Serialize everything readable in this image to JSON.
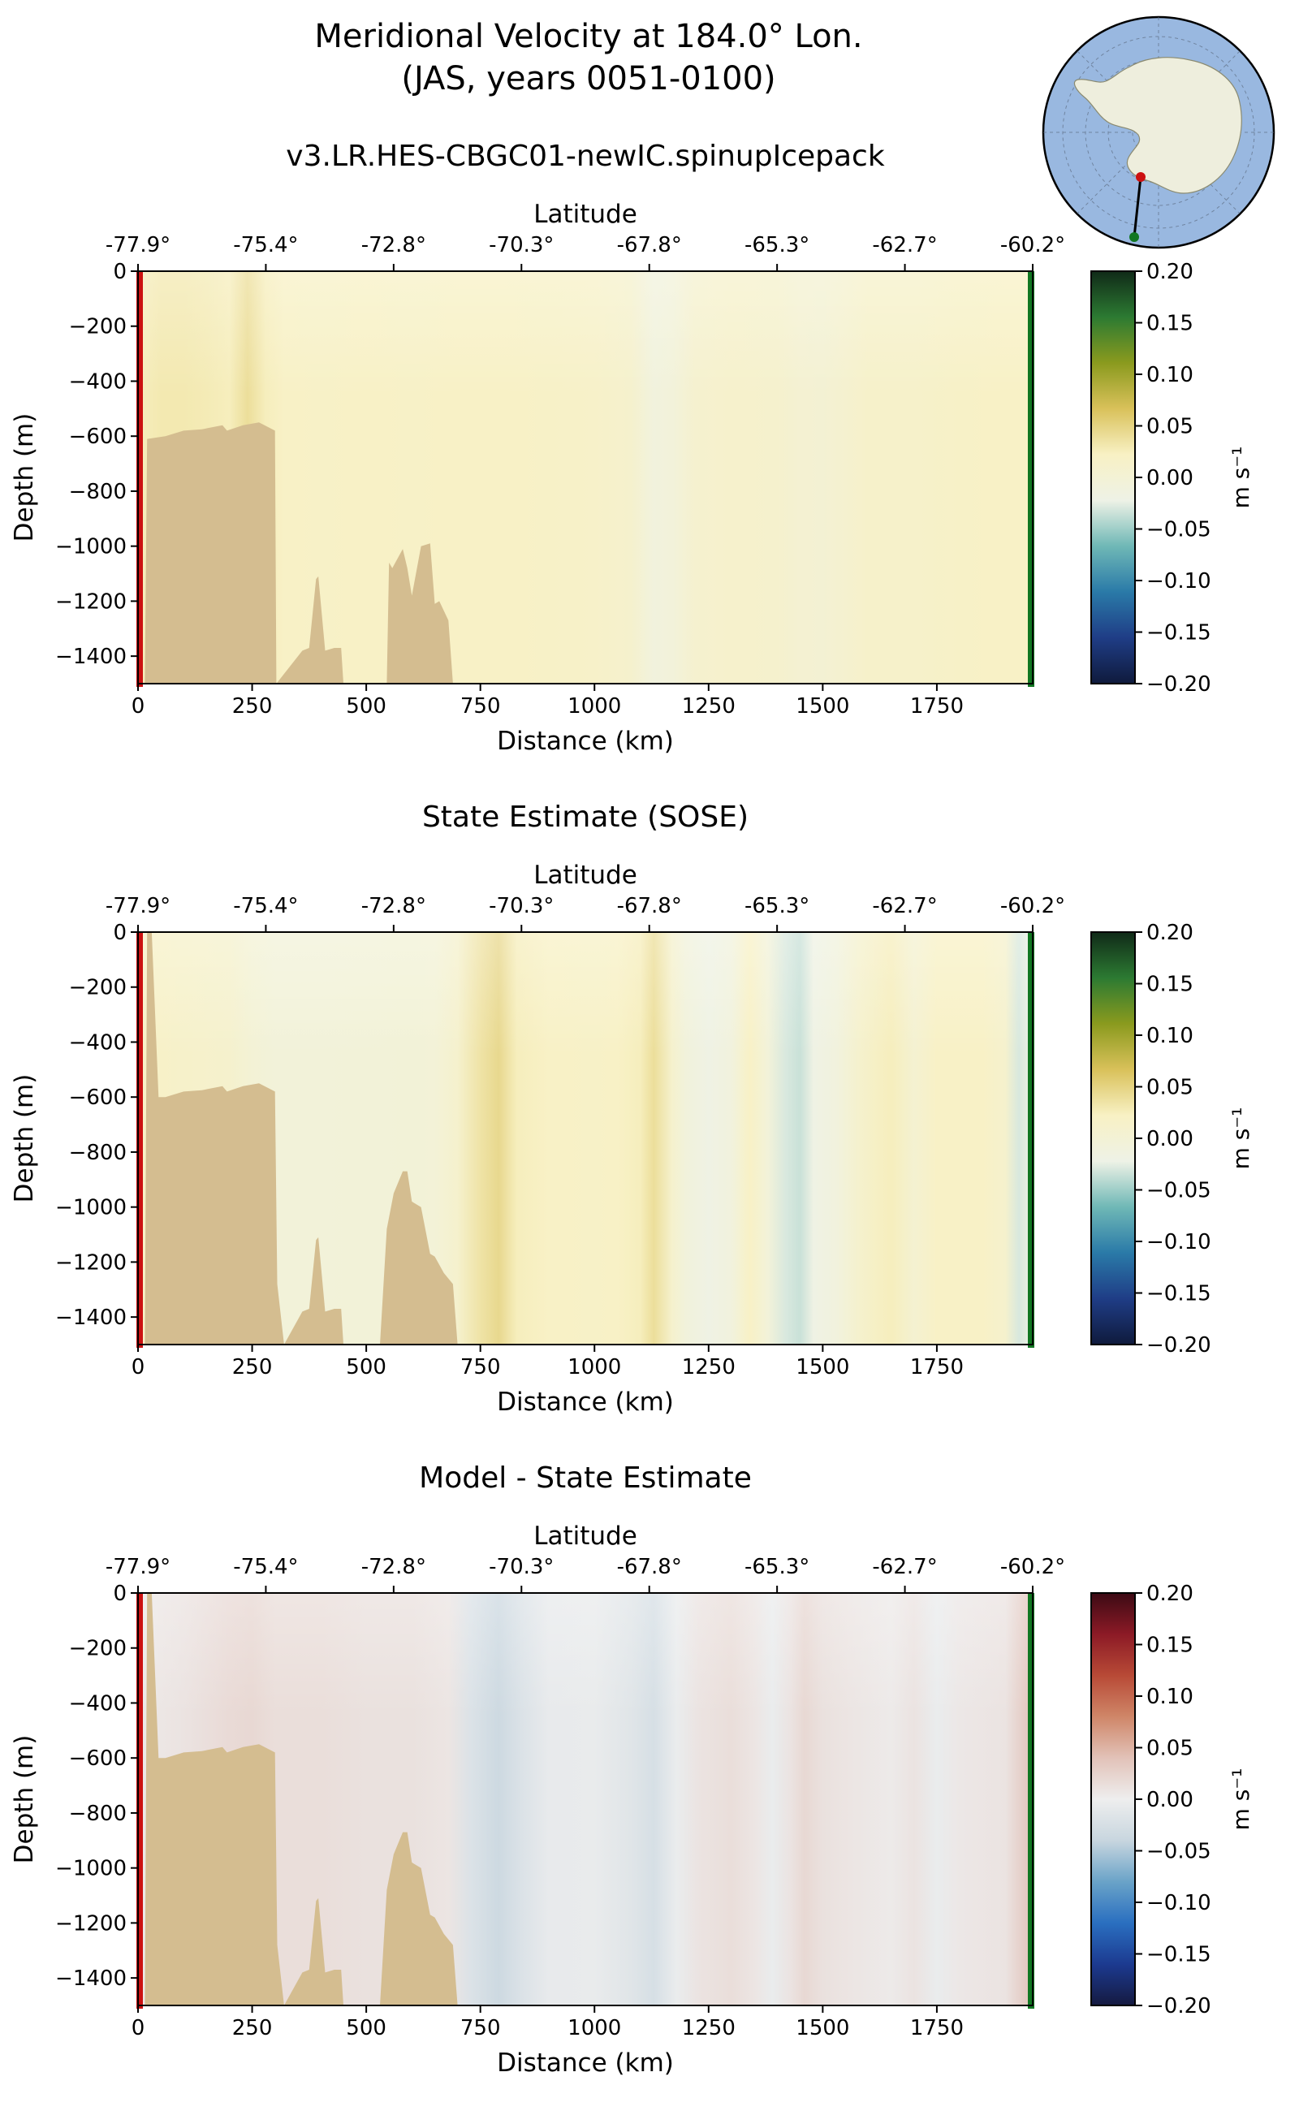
{
  "figure": {
    "title_line1": "Meridional Velocity at 184.0° Lon.",
    "title_line2": "(JAS, years 0051-0100)"
  },
  "colors": {
    "land": "#d4bd90",
    "section_start": "#cc1111",
    "section_end": "#117722",
    "ocean_map": "#99b8e0",
    "antarctica_map": "#eeeedd"
  },
  "chart_data": [
    {
      "type": "heatmap",
      "id": "model",
      "title": "v3.LR.HES-CBGC01-newIC.spinupIcepack",
      "xlabel": "Distance (km)",
      "ylabel": "Depth (m)",
      "top_axis_label": "Latitude",
      "xlim": [
        0,
        1960
      ],
      "ylim": [
        -1500,
        0
      ],
      "xticks": [
        0,
        250,
        500,
        750,
        1000,
        1250,
        1500,
        1750
      ],
      "yticks": [
        0,
        -200,
        -400,
        -600,
        -800,
        -1000,
        -1200,
        -1400
      ],
      "lat_ticks": [
        "-77.9°",
        "-75.4°",
        "-72.8°",
        "-70.3°",
        "-67.8°",
        "-65.3°",
        "-62.7°",
        "-60.2°"
      ],
      "lat_tick_km": [
        0,
        280,
        560,
        840,
        1120,
        1400,
        1680,
        1960
      ],
      "colorbar": {
        "label": "m s⁻¹",
        "min": -0.2,
        "max": 0.2,
        "ticks": [
          "0.20",
          "0.15",
          "0.10",
          "0.05",
          "0.00",
          "−0.05",
          "−0.10",
          "−0.15",
          "−0.20"
        ],
        "colormap": "speed",
        "stops": [
          "#0f1a3c",
          "#1f3d86",
          "#2a7aa8",
          "#6fb8b6",
          "#eef2e6",
          "#f8f1c4",
          "#d9c15a",
          "#8a9a1e",
          "#2c7a32",
          "#102a18"
        ]
      },
      "velocity_profile": {
        "distance_km": [
          0,
          50,
          100,
          150,
          200,
          240,
          280,
          320,
          400,
          500,
          600,
          700,
          800,
          900,
          1000,
          1080,
          1130,
          1170,
          1220,
          1300,
          1400,
          1450,
          1500,
          1550,
          1600,
          1700,
          1800,
          1900,
          1960
        ],
        "v": [
          0.025,
          0.03,
          0.03,
          0.028,
          0.025,
          0.04,
          0.025,
          0.02,
          0.018,
          0.02,
          0.018,
          0.02,
          0.02,
          0.018,
          0.016,
          0.01,
          -0.01,
          -0.006,
          0.008,
          0.012,
          0.01,
          0.004,
          0.002,
          0.008,
          0.015,
          0.015,
          0.018,
          0.02,
          0.02
        ]
      },
      "bathymetry": {
        "distance_km": [
          0,
          15,
          20,
          60,
          100,
          140,
          185,
          195,
          230,
          265,
          300,
          303,
          360,
          375,
          390,
          395,
          410,
          430,
          445,
          450,
          545,
          550,
          557,
          580,
          590,
          600,
          620,
          640,
          650,
          660,
          680,
          690,
          700,
          1960
        ],
        "depth_m": [
          -1500,
          -1500,
          -610,
          -600,
          -580,
          -575,
          -560,
          -580,
          -560,
          -550,
          -580,
          -1500,
          -1380,
          -1370,
          -1120,
          -1110,
          -1380,
          -1370,
          -1370,
          -1500,
          -1500,
          -1060,
          -1080,
          -1010,
          -1080,
          -1180,
          -1000,
          -990,
          -1210,
          -1200,
          -1270,
          -1500,
          -1500,
          -1500
        ]
      }
    },
    {
      "type": "heatmap",
      "id": "sose",
      "title": "State Estimate (SOSE)",
      "xlabel": "Distance (km)",
      "ylabel": "Depth (m)",
      "top_axis_label": "Latitude",
      "xlim": [
        0,
        1960
      ],
      "ylim": [
        -1500,
        0
      ],
      "xticks": [
        0,
        250,
        500,
        750,
        1000,
        1250,
        1500,
        1750
      ],
      "yticks": [
        0,
        -200,
        -400,
        -600,
        -800,
        -1000,
        -1200,
        -1400
      ],
      "lat_ticks": [
        "-77.9°",
        "-75.4°",
        "-72.8°",
        "-70.3°",
        "-67.8°",
        "-65.3°",
        "-62.7°",
        "-60.2°"
      ],
      "lat_tick_km": [
        0,
        280,
        560,
        840,
        1120,
        1400,
        1680,
        1960
      ],
      "colorbar": {
        "label": "m s⁻¹",
        "min": -0.2,
        "max": 0.2,
        "ticks": [
          "0.20",
          "0.15",
          "0.10",
          "0.05",
          "0.00",
          "−0.05",
          "−0.10",
          "−0.15",
          "−0.20"
        ],
        "colormap": "speed",
        "stops": [
          "#0f1a3c",
          "#1f3d86",
          "#2a7aa8",
          "#6fb8b6",
          "#eef2e6",
          "#f8f1c4",
          "#d9c15a",
          "#8a9a1e",
          "#2c7a32",
          "#102a18"
        ]
      },
      "velocity_profile": {
        "distance_km": [
          0,
          100,
          200,
          250,
          300,
          400,
          500,
          600,
          650,
          700,
          750,
          790,
          830,
          900,
          1000,
          1050,
          1100,
          1130,
          1170,
          1200,
          1250,
          1300,
          1340,
          1380,
          1420,
          1450,
          1480,
          1530,
          1580,
          1650,
          1700,
          1750,
          1850,
          1900,
          1930,
          1960
        ],
        "v": [
          0.02,
          0.015,
          0.01,
          0.0,
          -0.005,
          -0.005,
          -0.004,
          -0.003,
          -0.002,
          0.01,
          0.035,
          0.045,
          0.025,
          0.02,
          0.018,
          0.02,
          0.025,
          0.04,
          0.01,
          -0.008,
          -0.02,
          -0.01,
          0.02,
          -0.005,
          -0.03,
          -0.035,
          -0.02,
          -0.01,
          0.01,
          0.025,
          0.005,
          0.02,
          0.02,
          0.01,
          -0.03,
          -0.02
        ]
      },
      "bathymetry": {
        "distance_km": [
          0,
          15,
          20,
          30,
          45,
          60,
          100,
          140,
          185,
          195,
          230,
          265,
          300,
          305,
          320,
          360,
          375,
          390,
          395,
          410,
          430,
          445,
          450,
          530,
          545,
          560,
          580,
          590,
          600,
          620,
          640,
          650,
          670,
          690,
          700,
          1960
        ],
        "depth_m": [
          -1500,
          -1500,
          0,
          0,
          -600,
          -600,
          -580,
          -575,
          -560,
          -580,
          -560,
          -550,
          -580,
          -1280,
          -1500,
          -1380,
          -1370,
          -1120,
          -1110,
          -1380,
          -1370,
          -1370,
          -1500,
          -1500,
          -1080,
          -950,
          -870,
          -870,
          -980,
          -1000,
          -1170,
          -1180,
          -1240,
          -1280,
          -1500,
          -1500
        ]
      }
    },
    {
      "type": "heatmap",
      "id": "difference",
      "title": "Model - State Estimate",
      "xlabel": "Distance (km)",
      "ylabel": "Depth (m)",
      "top_axis_label": "Latitude",
      "xlim": [
        0,
        1960
      ],
      "ylim": [
        -1500,
        0
      ],
      "xticks": [
        0,
        250,
        500,
        750,
        1000,
        1250,
        1500,
        1750
      ],
      "yticks": [
        0,
        -200,
        -400,
        -600,
        -800,
        -1000,
        -1200,
        -1400
      ],
      "lat_ticks": [
        "-77.9°",
        "-75.4°",
        "-72.8°",
        "-70.3°",
        "-67.8°",
        "-65.3°",
        "-62.7°",
        "-60.2°"
      ],
      "lat_tick_km": [
        0,
        280,
        560,
        840,
        1120,
        1400,
        1680,
        1960
      ],
      "colorbar": {
        "label": "m s⁻¹",
        "min": -0.2,
        "max": 0.2,
        "ticks": [
          "0.20",
          "0.15",
          "0.10",
          "0.05",
          "0.00",
          "−0.05",
          "−0.10",
          "−0.15",
          "−0.20"
        ],
        "colormap": "balance",
        "stops": [
          "#151a40",
          "#1c3a90",
          "#2a6fc0",
          "#6aa3c8",
          "#c8d6df",
          "#eeeeee",
          "#e2c2b8",
          "#cf8668",
          "#b84a36",
          "#8c1a26",
          "#3c0a14"
        ]
      },
      "velocity_profile": {
        "distance_km": [
          0,
          100,
          200,
          250,
          300,
          400,
          500,
          600,
          680,
          730,
          790,
          840,
          900,
          1000,
          1080,
          1130,
          1180,
          1230,
          1300,
          1350,
          1390,
          1430,
          1460,
          1500,
          1560,
          1650,
          1700,
          1750,
          1800,
          1900,
          1940,
          1960
        ],
        "v": [
          0.005,
          0.01,
          0.018,
          0.02,
          0.015,
          0.015,
          0.012,
          0.012,
          0.008,
          -0.02,
          -0.035,
          -0.02,
          -0.006,
          -0.005,
          -0.015,
          -0.025,
          -0.004,
          0.01,
          0.015,
          0.008,
          -0.004,
          0.01,
          0.02,
          0.012,
          0.008,
          0.004,
          0.01,
          -0.004,
          0.006,
          0.01,
          0.03,
          0.04
        ]
      },
      "bathymetry": {
        "distance_km": [
          0,
          15,
          20,
          30,
          45,
          60,
          100,
          140,
          185,
          195,
          230,
          265,
          300,
          305,
          320,
          360,
          375,
          390,
          395,
          410,
          430,
          445,
          450,
          530,
          545,
          560,
          580,
          590,
          600,
          620,
          640,
          650,
          670,
          690,
          700,
          1960
        ],
        "depth_m": [
          -1500,
          -1500,
          0,
          0,
          -600,
          -600,
          -580,
          -575,
          -560,
          -580,
          -560,
          -550,
          -580,
          -1280,
          -1500,
          -1380,
          -1370,
          -1120,
          -1110,
          -1380,
          -1370,
          -1370,
          -1500,
          -1500,
          -1080,
          -950,
          -870,
          -870,
          -980,
          -1000,
          -1170,
          -1180,
          -1240,
          -1280,
          -1500,
          -1500
        ]
      }
    }
  ]
}
